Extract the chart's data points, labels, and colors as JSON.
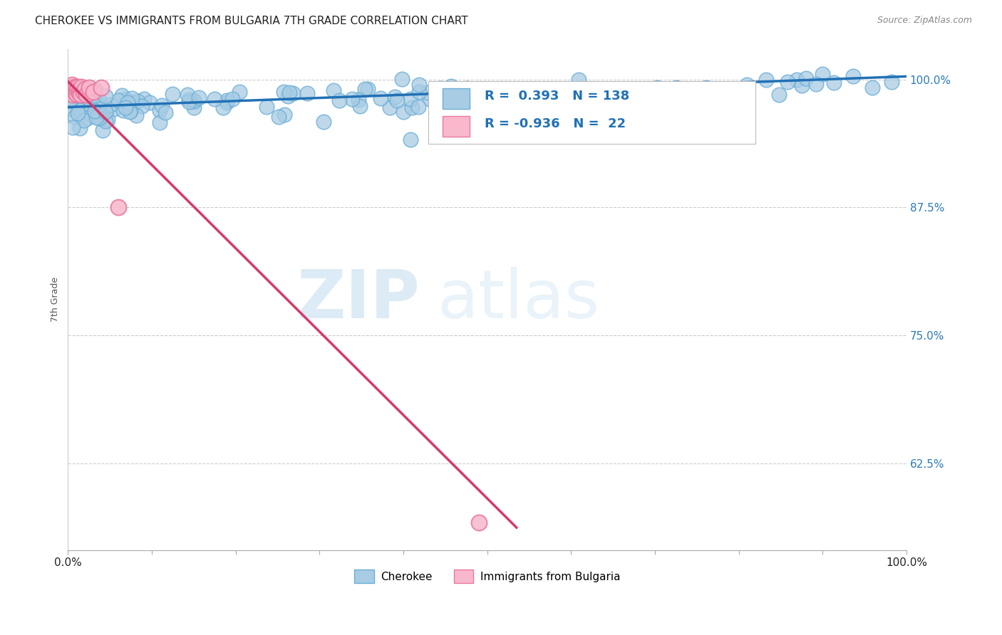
{
  "title": "CHEROKEE VS IMMIGRANTS FROM BULGARIA 7TH GRADE CORRELATION CHART",
  "source": "Source: ZipAtlas.com",
  "ylabel": "7th Grade",
  "legend_label1": "Cherokee",
  "legend_label2": "Immigrants from Bulgaria",
  "r1": 0.393,
  "n1": 138,
  "r2": -0.936,
  "n2": 22,
  "blue_color": "#a8cce4",
  "blue_edge_color": "#6aaed6",
  "blue_line_color": "#2171b5",
  "pink_color": "#f9b8cc",
  "pink_edge_color": "#e87aa0",
  "pink_line_color": "#d6396a",
  "grid_color": "#cccccc",
  "background_color": "#ffffff",
  "title_fontsize": 11,
  "source_fontsize": 9,
  "watermark_color": "#daeaf5",
  "tick_color": "#2b7bba",
  "xlim": [
    0.0,
    1.0
  ],
  "ylim": [
    0.54,
    1.03
  ],
  "yticks": [
    1.0,
    0.875,
    0.75,
    0.625
  ],
  "ytick_labels": [
    "100.0%",
    "87.5%",
    "75.0%",
    "62.5%"
  ],
  "blue_trend_x0": 0.0,
  "blue_trend_x1": 1.0,
  "blue_trend_y0": 0.973,
  "blue_trend_y1": 1.003,
  "pink_trend_x0": 0.0,
  "pink_trend_x1": 0.535,
  "pink_trend_y0": 0.998,
  "pink_trend_y1": 0.562
}
